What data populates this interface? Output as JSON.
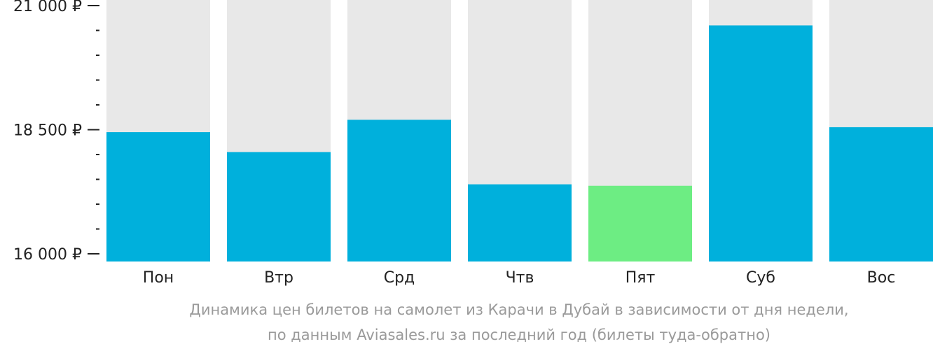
{
  "chart_data": {
    "type": "bar",
    "categories": [
      "Пон",
      "Втр",
      "Срд",
      "Чтв",
      "Пят",
      "Суб",
      "Вос"
    ],
    "values": [
      18450,
      18050,
      18700,
      17400,
      17370,
      20600,
      18550
    ],
    "ylim": [
      16000,
      21000
    ],
    "yticks": [
      {
        "value": 21000,
        "label": "21 000 ₽"
      },
      {
        "value": 18500,
        "label": "18 500 ₽"
      },
      {
        "value": 16000,
        "label": "16 000 ₽"
      }
    ],
    "minor_tick_step": 500,
    "highlight_index": 4,
    "colors": {
      "bar": "#00b0dc",
      "highlight": "#6ded83",
      "background_column": "#e8e8e8",
      "axis": "#222222"
    },
    "caption_line1": "Динамика цен билетов на самолет из Карачи в Дубай в зависимости от дня недели,",
    "caption_line2": "по данным Aviasales.ru за последний год (билеты туда-обратно)"
  }
}
